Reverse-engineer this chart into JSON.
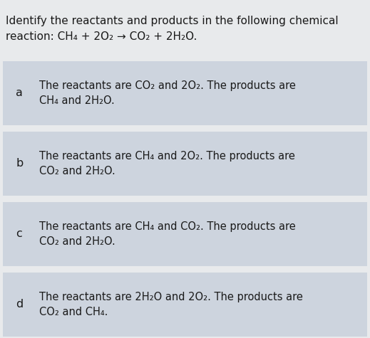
{
  "title_line1": "Identify the reactants and products in the following chemical",
  "title_line2": "reaction: CH₄ + 2O₂ → CO₂ + 2H₂O.",
  "overall_bg": "#e8eaec",
  "title_bg": "#e8eaec",
  "box_bg": "#cdd4de",
  "separator_color": "#b0bac8",
  "text_color": "#1a1a1a",
  "options": [
    {
      "label": "a",
      "line1": "The reactants are CO₂ and 2O₂. The products are",
      "line2": "CH₄ and 2H₂O."
    },
    {
      "label": "b",
      "line1": "The reactants are CH₄ and 2O₂. The products are",
      "line2": "CO₂ and 2H₂O."
    },
    {
      "label": "c",
      "line1": "The reactants are CH₄ and CO₂. The products are",
      "line2": "CO₂ and 2H₂O."
    },
    {
      "label": "d",
      "line1": "The reactants are 2H₂O and 2O₂. The products are",
      "line2": "CO₂ and CH₄."
    }
  ],
  "title_fontsize": 11.0,
  "option_fontsize": 10.5,
  "label_fontsize": 11.5
}
